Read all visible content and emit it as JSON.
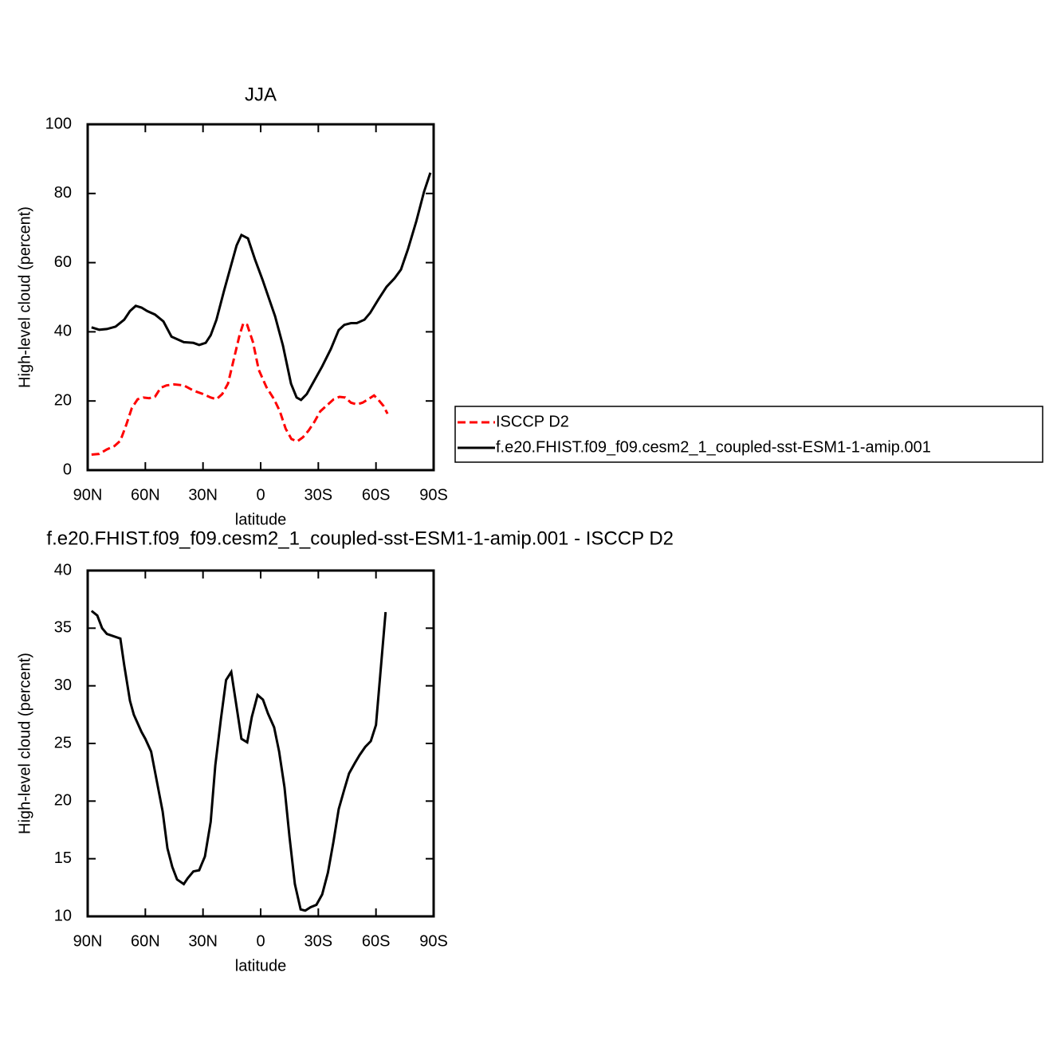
{
  "chart_data": [
    {
      "type": "line",
      "title": "JJA",
      "xlabel": "latitude",
      "ylabel": "High-level cloud (percent)",
      "xlim": [
        90,
        -90
      ],
      "xticks": [
        {
          "value": 90,
          "label": "90N"
        },
        {
          "value": 60,
          "label": "60N"
        },
        {
          "value": 30,
          "label": "30N"
        },
        0,
        {
          "value": -30,
          "label": "30S"
        },
        {
          "value": -60,
          "label": "60S"
        },
        {
          "value": -90,
          "label": "90S"
        }
      ],
      "ylim": [
        0,
        100
      ],
      "yticks": [
        0,
        20,
        40,
        60,
        80,
        100
      ],
      "legend": "right",
      "series": [
        {
          "name": "ISCCP D2",
          "color": "#ff0000",
          "dash": true,
          "x": [
            88,
            84,
            80,
            76,
            73,
            70,
            67,
            64,
            61,
            58,
            55,
            52,
            49,
            45,
            40,
            35,
            30,
            26,
            23,
            20,
            17,
            14,
            11,
            9,
            7,
            4,
            1,
            -3,
            -7,
            -10,
            -13,
            -16,
            -19,
            -22,
            -25,
            -28,
            -31,
            -34,
            -38,
            -41,
            -44,
            -47,
            -50,
            -53,
            -56,
            -59,
            -61,
            -64,
            -66
          ],
          "values": [
            4.5,
            4.7,
            6,
            7,
            8.5,
            13,
            18,
            20.5,
            21,
            20.8,
            21.2,
            23.8,
            24.5,
            24.8,
            24.5,
            23,
            22,
            21,
            20.5,
            22,
            25,
            32,
            39,
            42.5,
            42,
            37,
            29,
            24,
            20.5,
            17,
            12,
            9,
            8.3,
            9.5,
            11.5,
            14,
            17,
            18.5,
            20.5,
            21.2,
            21,
            19.5,
            19,
            19.5,
            20.5,
            21.6,
            20.5,
            18.5,
            16.3
          ]
        },
        {
          "name": "f.e20.FHIST.f09_f09.cesm2_1_coupled-sst-ESM1-1-amip.001",
          "color": "#000000",
          "dash": false,
          "x": [
            88,
            84,
            80,
            75.5,
            71,
            68,
            65,
            62,
            59,
            55,
            50.6,
            46.4,
            40,
            35,
            32,
            28.6,
            26,
            23,
            19,
            14.5,
            12.5,
            10,
            6.6,
            3,
            -1,
            -7.5,
            -11.6,
            -15.8,
            -18.7,
            -21,
            -24,
            -27,
            -32,
            -36.5,
            -40.6,
            -43.5,
            -47,
            -50,
            -54,
            -57,
            -61.4,
            -65.5,
            -69.7,
            -73,
            -76.7,
            -81,
            -85,
            -88.3
          ],
          "values": [
            41.3,
            40.6,
            40.8,
            41.5,
            43.5,
            46,
            47.5,
            47,
            46,
            45,
            43,
            38.6,
            37,
            36.8,
            36.2,
            36.8,
            39,
            43.5,
            52,
            61,
            65,
            68,
            67,
            61,
            55,
            44.5,
            36,
            25,
            21,
            20.3,
            22,
            25,
            30,
            35,
            40.5,
            42,
            42.5,
            42.5,
            43.5,
            45.5,
            49.5,
            53,
            55.5,
            58,
            64,
            72,
            80.5,
            86
          ]
        }
      ]
    },
    {
      "type": "line",
      "title": "f.e20.FHIST.f09_f09.cesm2_1_coupled-sst-ESM1-1-amip.001 - ISCCP D2",
      "xlabel": "latitude",
      "ylabel": "High-level cloud (percent)",
      "xlim": [
        90,
        -90
      ],
      "xticks": [
        {
          "value": 90,
          "label": "90N"
        },
        {
          "value": 60,
          "label": "60N"
        },
        {
          "value": 30,
          "label": "30N"
        },
        0,
        {
          "value": -30,
          "label": "30S"
        },
        {
          "value": -60,
          "label": "60S"
        },
        {
          "value": -90,
          "label": "90S"
        }
      ],
      "ylim": [
        10,
        40
      ],
      "yticks": [
        10,
        15,
        20,
        25,
        30,
        35,
        40
      ],
      "series": [
        {
          "color": "#000000",
          "dash": false,
          "x": [
            88,
            85,
            82.5,
            80,
            73,
            71,
            68,
            66,
            62,
            60,
            57,
            54,
            51,
            48.5,
            46,
            43.5,
            40,
            38,
            35,
            32,
            29,
            26,
            23.6,
            20.7,
            18,
            15.3,
            13,
            10,
            7,
            4.6,
            1.6,
            -1.2,
            -3.8,
            -7,
            -9.6,
            -12.4,
            -15,
            -17.8,
            -20.8,
            -23.2,
            -26,
            -29,
            -32,
            -35,
            -37.8,
            -40.6,
            -43.5,
            -46,
            -49,
            -51.5,
            -54.4,
            -57.3,
            -60,
            -62.2,
            -65
          ],
          "values": [
            36.5,
            36.1,
            35,
            34.5,
            34.1,
            31.8,
            28.7,
            27.5,
            26,
            25.4,
            24.3,
            21.7,
            19.1,
            15.9,
            14.3,
            13.2,
            12.8,
            13.3,
            13.9,
            14,
            15.2,
            18.2,
            23.1,
            27.1,
            30.5,
            31.2,
            28.7,
            25.4,
            25.1,
            27.3,
            29.2,
            28.8,
            27.6,
            26.4,
            24.3,
            21.2,
            16.9,
            12.8,
            10.6,
            10.5,
            10.8,
            11,
            11.9,
            13.8,
            16.4,
            19.3,
            21,
            22.4,
            23.3,
            24,
            24.7,
            25.2,
            26.6,
            30.9,
            36.4
          ]
        }
      ]
    }
  ]
}
